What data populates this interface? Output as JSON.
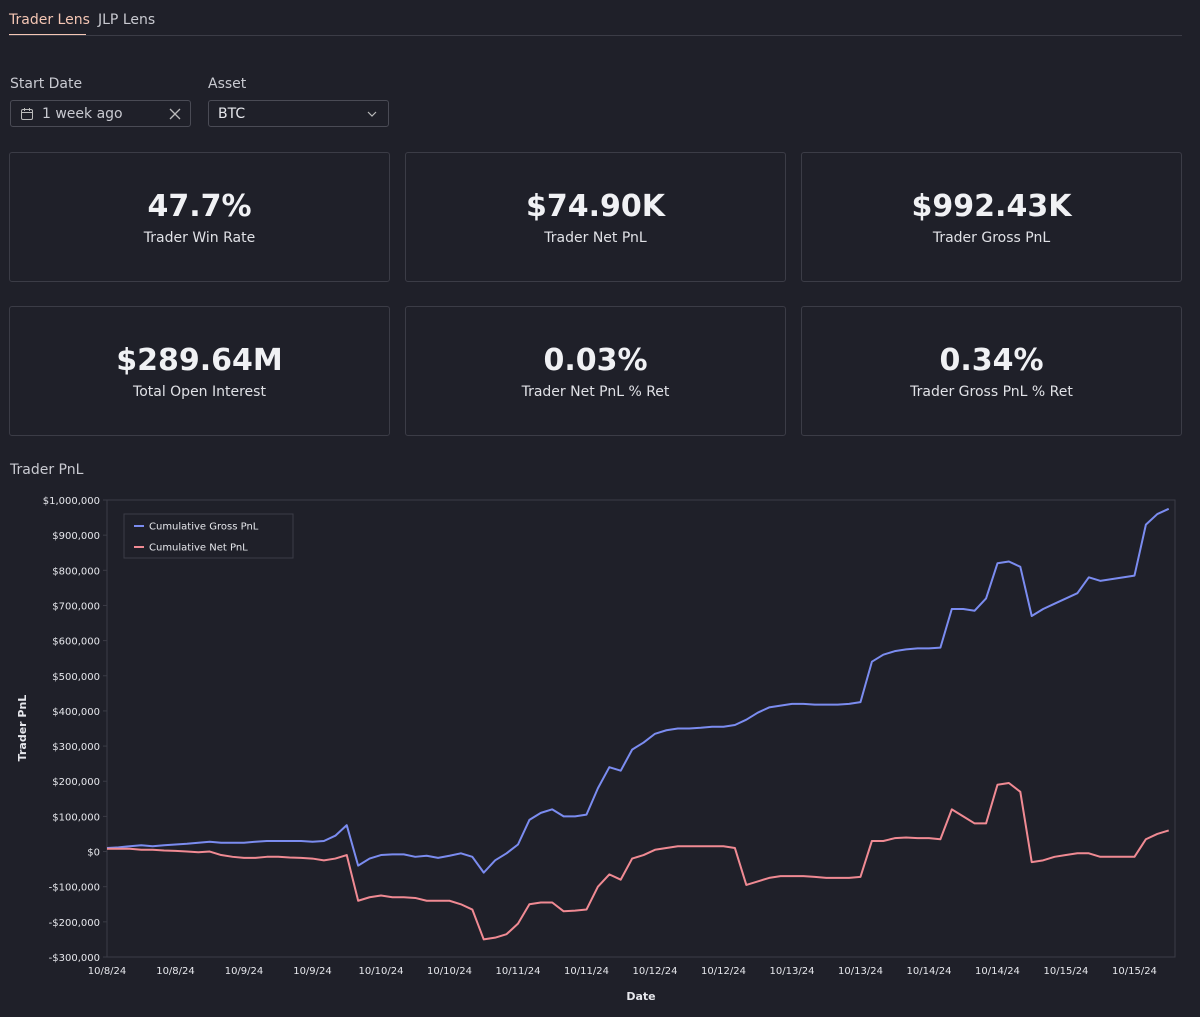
{
  "tabs": [
    "Trader Lens",
    "JLP Lens"
  ],
  "filters": {
    "start_date": {
      "label": "Start Date",
      "value": "1 week ago"
    },
    "asset": {
      "label": "Asset",
      "value": "BTC"
    }
  },
  "metrics": [
    {
      "value": "47.7%",
      "label": "Trader Win Rate"
    },
    {
      "value": "$74.90K",
      "label": "Trader Net PnL"
    },
    {
      "value": "$992.43K",
      "label": "Trader Gross PnL"
    },
    {
      "value": "$289.64M",
      "label": "Total Open Interest"
    },
    {
      "value": "0.03%",
      "label": "Trader Net PnL % Ret"
    },
    {
      "value": "0.34%",
      "label": "Trader Gross PnL % Ret"
    }
  ],
  "section_title": "Trader PnL",
  "chart_data": {
    "type": "line",
    "x_label": "Date",
    "y_label": "Trader PnL",
    "legend": "upper left",
    "grid": false,
    "categories": [
      "10/8/24",
      null,
      null,
      null,
      null,
      null,
      "10/8/24",
      null,
      null,
      null,
      null,
      null,
      "10/9/24",
      null,
      null,
      null,
      null,
      null,
      "10/9/24",
      null,
      null,
      null,
      null,
      null,
      "10/10/24",
      null,
      null,
      null,
      null,
      null,
      "10/10/24",
      null,
      null,
      null,
      null,
      null,
      "10/11/24",
      null,
      null,
      null,
      null,
      null,
      "10/11/24",
      null,
      null,
      null,
      null,
      null,
      "10/12/24",
      null,
      null,
      null,
      null,
      null,
      "10/12/24",
      null,
      null,
      null,
      null,
      null,
      "10/13/24",
      null,
      null,
      null,
      null,
      null,
      "10/13/24",
      null,
      null,
      null,
      null,
      null,
      "10/14/24",
      null,
      null,
      null,
      null,
      null,
      "10/14/24",
      null,
      null,
      null,
      null,
      null,
      "10/15/24",
      null,
      null,
      null,
      null,
      null,
      "10/15/24",
      null,
      null,
      null
    ],
    "series": [
      {
        "name": "Cumulative Gross PnL",
        "color": "#7b8cf0",
        "values": [
          10000,
          12000,
          15000,
          18000,
          15000,
          18000,
          20000,
          22000,
          25000,
          28000,
          25000,
          25000,
          25000,
          28000,
          30000,
          30000,
          30000,
          30000,
          28000,
          30000,
          45000,
          75000,
          -40000,
          -20000,
          -10000,
          -8000,
          -8000,
          -15000,
          -12000,
          -18000,
          -12000,
          -5000,
          -15000,
          -60000,
          -25000,
          -5000,
          20000,
          90000,
          110000,
          120000,
          100000,
          100000,
          105000,
          180000,
          240000,
          230000,
          290000,
          310000,
          335000,
          345000,
          350000,
          350000,
          352000,
          355000,
          355000,
          360000,
          375000,
          395000,
          410000,
          415000,
          420000,
          420000,
          418000,
          418000,
          418000,
          420000,
          425000,
          540000,
          560000,
          570000,
          575000,
          578000,
          578000,
          580000,
          690000,
          690000,
          685000,
          720000,
          820000,
          825000,
          810000,
          670000,
          690000,
          705000,
          720000,
          735000,
          780000,
          770000,
          775000,
          780000,
          785000,
          930000,
          960000,
          975000
        ]
      },
      {
        "name": "Cumulative Net PnL",
        "color": "#f08a93",
        "values": [
          8000,
          8000,
          8000,
          5000,
          5000,
          3000,
          2000,
          0,
          -2000,
          0,
          -10000,
          -15000,
          -18000,
          -18000,
          -15000,
          -15000,
          -17000,
          -18000,
          -20000,
          -25000,
          -20000,
          -10000,
          -140000,
          -130000,
          -125000,
          -130000,
          -130000,
          -132000,
          -140000,
          -140000,
          -140000,
          -150000,
          -165000,
          -250000,
          -245000,
          -235000,
          -205000,
          -150000,
          -145000,
          -145000,
          -170000,
          -168000,
          -165000,
          -100000,
          -65000,
          -80000,
          -20000,
          -10000,
          5000,
          10000,
          15000,
          15000,
          15000,
          15000,
          15000,
          10000,
          -95000,
          -85000,
          -75000,
          -70000,
          -70000,
          -70000,
          -72000,
          -75000,
          -75000,
          -75000,
          -72000,
          30000,
          30000,
          38000,
          40000,
          38000,
          38000,
          35000,
          120000,
          100000,
          80000,
          80000,
          190000,
          195000,
          170000,
          -30000,
          -25000,
          -15000,
          -10000,
          -5000,
          -5000,
          -15000,
          -15000,
          -15000,
          -15000,
          35000,
          50000,
          60000
        ]
      }
    ],
    "ylim": [
      -300000,
      1000000
    ],
    "yticks": [
      {
        "value": -300000,
        "label": "-$300,000"
      },
      {
        "value": -200000,
        "label": "-$200,000"
      },
      {
        "value": -100000,
        "label": "-$100,000"
      },
      {
        "value": 0,
        "label": "$0"
      },
      {
        "value": 100000,
        "label": "$100,000"
      },
      {
        "value": 200000,
        "label": "$200,000"
      },
      {
        "value": 300000,
        "label": "$300,000"
      },
      {
        "value": 400000,
        "label": "$400,000"
      },
      {
        "value": 500000,
        "label": "$500,000"
      },
      {
        "value": 600000,
        "label": "$600,000"
      },
      {
        "value": 700000,
        "label": "$700,000"
      },
      {
        "value": 800000,
        "label": "$800,000"
      },
      {
        "value": 900000,
        "label": "$900,000"
      },
      {
        "value": 1000000,
        "label": "$1,000,000"
      }
    ]
  }
}
